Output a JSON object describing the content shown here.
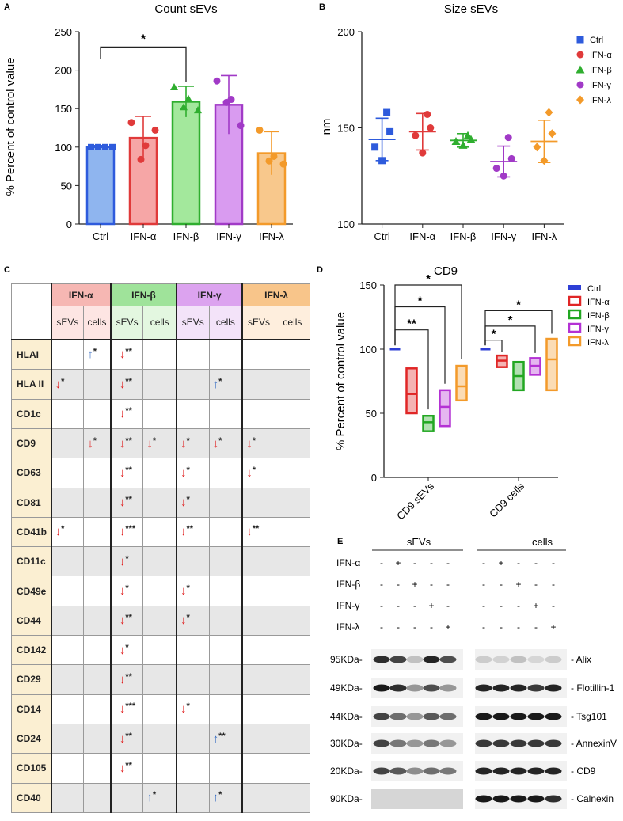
{
  "panelA": {
    "letter": "A",
    "title": "Count sEVs",
    "ylabel": "% Percent of control value",
    "sig_star": "*"
  },
  "panelB": {
    "letter": "B",
    "title": "Size sEVs",
    "ylabel": "nm"
  },
  "panelC": {
    "letter": "C",
    "groups": [
      "IFN-α",
      "IFN-β",
      "IFN-γ",
      "IFN-λ"
    ],
    "group_colors": [
      "#f6b7b3",
      "#9fe39a",
      "#dca3ef",
      "#f8c58a"
    ],
    "sub_headers": [
      "sEVs",
      "cells",
      "sEVs",
      "cells",
      "sEVs",
      "cells",
      "sEVs",
      "cells"
    ],
    "sub_colors": [
      "#fde5e3",
      "#fde5e3",
      "#e3f7e0",
      "#e3f7e0",
      "#f3e3f9",
      "#f3e3f9",
      "#feeedd",
      "#feeedd"
    ],
    "rows": [
      {
        "marker": "HLAI",
        "cells": [
          "",
          "up:*",
          "down:**",
          "",
          "",
          "",
          "",
          ""
        ]
      },
      {
        "marker": "HLA II",
        "cells": [
          "down:*",
          "",
          "down:**",
          "",
          "",
          "up:*",
          "",
          ""
        ]
      },
      {
        "marker": "CD1c",
        "cells": [
          "",
          "",
          "down:**",
          "",
          "",
          "",
          "",
          ""
        ]
      },
      {
        "marker": "CD9",
        "cells": [
          "",
          "down:*",
          "down:**",
          "down:*",
          "down:*",
          "down:*",
          "down:*",
          ""
        ]
      },
      {
        "marker": "CD63",
        "cells": [
          "",
          "",
          "down:**",
          "",
          "down:*",
          "",
          "down:*",
          ""
        ]
      },
      {
        "marker": "CD81",
        "cells": [
          "",
          "",
          "down:**",
          "",
          "down:*",
          "",
          "",
          ""
        ]
      },
      {
        "marker": "CD41b",
        "cells": [
          "down:*",
          "",
          "down:***",
          "",
          "down:**",
          "",
          "down:**",
          ""
        ]
      },
      {
        "marker": "CD11c",
        "cells": [
          "",
          "",
          "down:*",
          "",
          "",
          "",
          "",
          ""
        ]
      },
      {
        "marker": "CD49e",
        "cells": [
          "",
          "",
          "down:*",
          "",
          "down:*",
          "",
          "",
          ""
        ]
      },
      {
        "marker": "CD44",
        "cells": [
          "",
          "",
          "down:**",
          "",
          "down:*",
          "",
          "",
          ""
        ]
      },
      {
        "marker": "CD142",
        "cells": [
          "",
          "",
          "down:*",
          "",
          "",
          "",
          "",
          ""
        ]
      },
      {
        "marker": "CD29",
        "cells": [
          "",
          "",
          "down:**",
          "",
          "",
          "",
          "",
          ""
        ]
      },
      {
        "marker": "CD14",
        "cells": [
          "",
          "",
          "down:***",
          "",
          "down:*",
          "",
          "",
          ""
        ]
      },
      {
        "marker": "CD24",
        "cells": [
          "",
          "",
          "down:**",
          "",
          "",
          "up:**",
          "",
          ""
        ]
      },
      {
        "marker": "CD105",
        "cells": [
          "",
          "",
          "down:**",
          "",
          "",
          "",
          "",
          ""
        ]
      },
      {
        "marker": "CD40",
        "cells": [
          "",
          "",
          "",
          "up:*",
          "",
          "up:*",
          "",
          ""
        ]
      }
    ]
  },
  "panelD": {
    "letter": "D",
    "title": "CD9",
    "ylabel": "% Percent of control value",
    "stars": [
      "*",
      "*",
      "**",
      "*",
      "*",
      "*"
    ]
  },
  "panelE": {
    "letter": "E",
    "header_sevs": "sEVs",
    "header_cells": "cells",
    "treatments": [
      "IFN-α",
      "IFN-β",
      "IFN-γ",
      "IFN-λ"
    ],
    "signs": [
      [
        "-",
        "+",
        "-",
        "-",
        "-",
        "-",
        "+",
        "-",
        "-",
        "-"
      ],
      [
        "-",
        "-",
        "+",
        "-",
        "-",
        "-",
        "-",
        "+",
        "-",
        "-"
      ],
      [
        "-",
        "-",
        "-",
        "+",
        "-",
        "-",
        "-",
        "-",
        "+",
        "-"
      ],
      [
        "-",
        "-",
        "-",
        "-",
        "+",
        "-",
        "-",
        "-",
        "-",
        "+"
      ]
    ],
    "blots": [
      {
        "kda": "95KDa-",
        "protein": "- Alix"
      },
      {
        "kda": "49KDa-",
        "protein": "- Flotillin-1"
      },
      {
        "kda": "44KDa-",
        "protein": "- Tsg101"
      },
      {
        "kda": "30KDa-",
        "protein": "- AnnexinV"
      },
      {
        "kda": "20KDa-",
        "protein": "- CD9"
      },
      {
        "kda": "90KDa-",
        "protein": "- Calnexin"
      }
    ]
  },
  "chart_data": [
    {
      "type": "bar",
      "title": "Count sEVs",
      "xlabel": "",
      "ylabel": "% Percent of control value",
      "categories": [
        "Ctrl",
        "IFN-α",
        "IFN-β",
        "IFN-γ",
        "IFN-λ"
      ],
      "values": [
        100,
        112,
        159,
        155,
        92
      ],
      "errors": [
        2,
        28,
        20,
        38,
        28
      ],
      "points": [
        [
          100,
          100,
          100,
          100
        ],
        [
          132,
          102,
          84,
          122
        ],
        [
          178,
          163,
          152,
          148
        ],
        [
          186,
          162,
          158,
          128
        ],
        [
          122,
          88,
          82,
          78
        ]
      ],
      "colors": [
        "#2e5bdc",
        "#e03a3a",
        "#2fae2f",
        "#a13ac7",
        "#f39a2a"
      ],
      "fills": [
        "#8fb5ef",
        "#f6a6a6",
        "#a3e89c",
        "#d99bf0",
        "#f8c88c"
      ],
      "yticks": [
        0,
        50,
        100,
        150,
        200,
        250
      ],
      "ylim": [
        0,
        250
      ]
    },
    {
      "type": "scatter",
      "title": "Size sEVs",
      "ylabel": "nm",
      "categories": [
        "Ctrl",
        "IFN-α",
        "IFN-β",
        "IFN-γ",
        "IFN-λ"
      ],
      "means": [
        144,
        148,
        143.5,
        132.5,
        143
      ],
      "sds": [
        11,
        9.5,
        3.5,
        8,
        11
      ],
      "points": [
        [
          158,
          148,
          140,
          133
        ],
        [
          157,
          150,
          146,
          137
        ],
        [
          146,
          144,
          143,
          141
        ],
        [
          145,
          134,
          129,
          125
        ],
        [
          158,
          147,
          140,
          133
        ]
      ],
      "markers": [
        "square",
        "circle",
        "triangle",
        "circle",
        "diamond"
      ],
      "colors": [
        "#2e5bdc",
        "#e03a3a",
        "#2fae2f",
        "#a13ac7",
        "#f39a2a"
      ],
      "legend": [
        "Ctrl",
        "IFN-α",
        "IFN-β",
        "IFN-γ",
        "IFN-λ"
      ],
      "yticks": [
        100,
        150,
        200
      ],
      "ylim": [
        100,
        200
      ]
    },
    {
      "type": "bar",
      "title": "CD9",
      "ylabel": "% Percent of control value",
      "groups": [
        "CD9 sEVs",
        "CD9 cells"
      ],
      "series": [
        {
          "name": "Ctrl",
          "color": "#2e3fd6",
          "ranges": [
            [
              100,
              100,
              100
            ],
            [
              100,
              100,
              100
            ]
          ]
        },
        {
          "name": "IFN-α",
          "color": "#e02626",
          "ranges": [
            [
              50,
              65,
              85
            ],
            [
              86,
              91,
              95
            ]
          ]
        },
        {
          "name": "IFN-β",
          "color": "#22a722",
          "ranges": [
            [
              36,
              43,
              48
            ],
            [
              68,
              79,
              90
            ]
          ]
        },
        {
          "name": "IFN-γ",
          "color": "#b432d4",
          "ranges": [
            [
              40,
              55,
              68
            ],
            [
              80,
              87,
              93
            ]
          ]
        },
        {
          "name": "IFN-λ",
          "color": "#f39a2a",
          "ranges": [
            [
              60,
              71,
              87
            ],
            [
              68,
              92,
              108
            ]
          ]
        }
      ],
      "yticks": [
        0,
        50,
        100,
        150
      ],
      "ylim": [
        0,
        150
      ]
    }
  ]
}
